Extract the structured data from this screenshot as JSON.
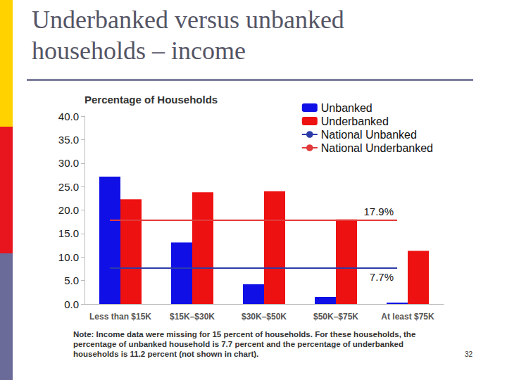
{
  "page": {
    "title": "Underbanked versus unbanked households – income",
    "note": "Note: Income data were missing for 15 percent of households. For these households, the percentage of unbanked household is 7.7 percent and the percentage of underbanked households is 11.2 percent (not shown in chart).",
    "page_number": 32
  },
  "chart_data": {
    "type": "bar",
    "y_label": "Percentage of Households",
    "categories": [
      "Less than $15K",
      "$15K–$30K",
      "$30K–$50K",
      "$50K–$75K",
      "At least $75K"
    ],
    "series": [
      {
        "name": "Unbanked",
        "color": "#1010e6",
        "values": [
          27.1,
          13.1,
          4.2,
          1.5,
          0.3
        ]
      },
      {
        "name": "Underbanked",
        "color": "#ee1111",
        "values": [
          22.3,
          23.8,
          24.0,
          18.0,
          11.3
        ]
      }
    ],
    "reference_lines": [
      {
        "name": "National Unbanked",
        "color": "#2b3ca8",
        "value": 7.7,
        "value_label": "7.7%"
      },
      {
        "name": "National Underbanked",
        "color": "#e23a3a",
        "value": 17.9,
        "value_label": "17.9%"
      }
    ],
    "ylim": [
      0,
      40
    ],
    "yticks": [
      {
        "value": 0,
        "label": "0.0"
      },
      {
        "value": 5,
        "label": "5.0"
      },
      {
        "value": 10,
        "label": "10.0"
      },
      {
        "value": 15,
        "label": "15.0"
      },
      {
        "value": 20,
        "label": "20.0"
      },
      {
        "value": 25,
        "label": "25.0"
      },
      {
        "value": 30,
        "label": "30.0"
      },
      {
        "value": 35,
        "label": "35.0"
      },
      {
        "value": 40,
        "label": "40.0"
      }
    ],
    "grid": false,
    "legend": "top-right"
  }
}
